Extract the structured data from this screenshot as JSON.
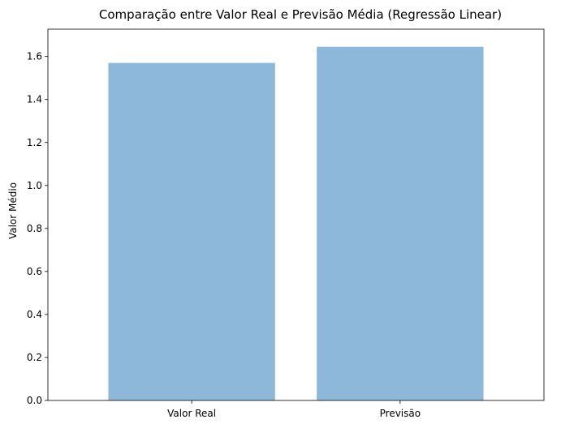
{
  "chart_data": {
    "type": "bar",
    "title": "Comparação entre Valor Real e Previsão Média (Regressão Linear)",
    "xlabel": "",
    "ylabel": "Valor Médio",
    "categories": [
      "Valor Real",
      "Previsão"
    ],
    "values": [
      1.57,
      1.645
    ],
    "ylim": [
      0,
      1.727
    ],
    "yticks": [
      0.0,
      0.2,
      0.4,
      0.6,
      0.8,
      1.0,
      1.2,
      1.4,
      1.6
    ],
    "ytick_labels": [
      "0.0",
      "0.2",
      "0.4",
      "0.6",
      "0.8",
      "1.0",
      "1.2",
      "1.4",
      "1.6"
    ],
    "grid": false,
    "legend": "none",
    "colors": {
      "bar": "#8db8d9",
      "axis": "#000000",
      "background": "#ffffff"
    }
  }
}
